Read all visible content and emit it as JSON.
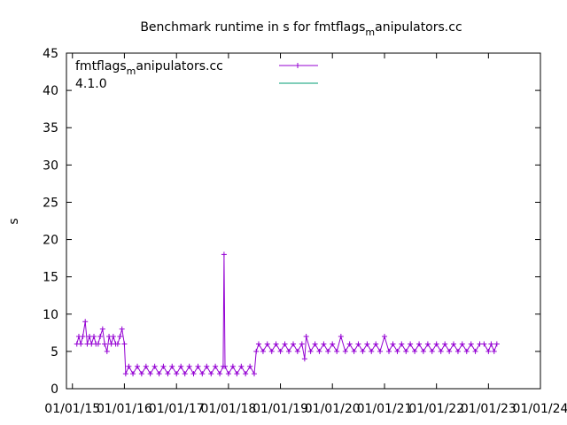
{
  "chart_data": {
    "type": "line",
    "title_main": "Benchmark runtime in s for fmtflags",
    "title_sub": "m",
    "title_tail": "anipulators.cc",
    "ylabel": "s",
    "xlabel": "",
    "ylim": [
      0,
      45
    ],
    "yticks": [
      "0",
      "5",
      "10",
      "15",
      "20",
      "25",
      "30",
      "35",
      "40",
      "45"
    ],
    "xlim": [
      "2014-11-20",
      "2024-01-01"
    ],
    "xticks": [
      {
        "date": "2015-01-01",
        "label": "01/01/15"
      },
      {
        "date": "2016-01-01",
        "label": "01/01/16"
      },
      {
        "date": "2017-01-01",
        "label": "01/01/17"
      },
      {
        "date": "2018-01-01",
        "label": "01/01/18"
      },
      {
        "date": "2019-01-01",
        "label": "01/01/19"
      },
      {
        "date": "2020-01-01",
        "label": "01/01/20"
      },
      {
        "date": "2021-01-01",
        "label": "01/01/21"
      },
      {
        "date": "2022-01-01",
        "label": "01/01/22"
      },
      {
        "date": "2023-01-01",
        "label": "01/01/23"
      },
      {
        "date": "2024-01-01",
        "label": "01/01/24"
      }
    ],
    "grid": false,
    "legend_position": "top-left",
    "series": [
      {
        "name_main": "fmtflags",
        "name_sub": "m",
        "name_tail": "anipulators.cc",
        "color": "#9400d3",
        "marker": "plus",
        "points": [
          {
            "x": "2015-02-01",
            "y": 6
          },
          {
            "x": "2015-02-15",
            "y": 7
          },
          {
            "x": "2015-03-01",
            "y": 6
          },
          {
            "x": "2015-03-15",
            "y": 7
          },
          {
            "x": "2015-04-01",
            "y": 9
          },
          {
            "x": "2015-04-15",
            "y": 6
          },
          {
            "x": "2015-05-01",
            "y": 7
          },
          {
            "x": "2015-05-15",
            "y": 6
          },
          {
            "x": "2015-06-01",
            "y": 7
          },
          {
            "x": "2015-06-15",
            "y": 6
          },
          {
            "x": "2015-07-01",
            "y": 6
          },
          {
            "x": "2015-07-15",
            "y": 7
          },
          {
            "x": "2015-08-01",
            "y": 8
          },
          {
            "x": "2015-08-15",
            "y": 6
          },
          {
            "x": "2015-09-01",
            "y": 5
          },
          {
            "x": "2015-09-15",
            "y": 7
          },
          {
            "x": "2015-10-01",
            "y": 6
          },
          {
            "x": "2015-10-15",
            "y": 7
          },
          {
            "x": "2015-11-01",
            "y": 6
          },
          {
            "x": "2015-11-15",
            "y": 6
          },
          {
            "x": "2015-12-01",
            "y": 7
          },
          {
            "x": "2015-12-15",
            "y": 8
          },
          {
            "x": "2016-01-01",
            "y": 6
          },
          {
            "x": "2016-01-10",
            "y": 2
          },
          {
            "x": "2016-02-01",
            "y": 3
          },
          {
            "x": "2016-03-01",
            "y": 2
          },
          {
            "x": "2016-04-01",
            "y": 3
          },
          {
            "x": "2016-05-01",
            "y": 2
          },
          {
            "x": "2016-06-01",
            "y": 3
          },
          {
            "x": "2016-07-01",
            "y": 2
          },
          {
            "x": "2016-08-01",
            "y": 3
          },
          {
            "x": "2016-09-01",
            "y": 2
          },
          {
            "x": "2016-10-01",
            "y": 3
          },
          {
            "x": "2016-11-01",
            "y": 2
          },
          {
            "x": "2016-12-01",
            "y": 3
          },
          {
            "x": "2017-01-01",
            "y": 2
          },
          {
            "x": "2017-02-01",
            "y": 3
          },
          {
            "x": "2017-03-01",
            "y": 2
          },
          {
            "x": "2017-04-01",
            "y": 3
          },
          {
            "x": "2017-05-01",
            "y": 2
          },
          {
            "x": "2017-06-01",
            "y": 3
          },
          {
            "x": "2017-07-01",
            "y": 2
          },
          {
            "x": "2017-08-01",
            "y": 3
          },
          {
            "x": "2017-09-01",
            "y": 2
          },
          {
            "x": "2017-10-01",
            "y": 3
          },
          {
            "x": "2017-11-01",
            "y": 2
          },
          {
            "x": "2017-11-25",
            "y": 3
          },
          {
            "x": "2017-12-01",
            "y": 18
          },
          {
            "x": "2017-12-08",
            "y": 3
          },
          {
            "x": "2018-01-01",
            "y": 2
          },
          {
            "x": "2018-02-01",
            "y": 3
          },
          {
            "x": "2018-03-01",
            "y": 2
          },
          {
            "x": "2018-04-01",
            "y": 3
          },
          {
            "x": "2018-05-01",
            "y": 2
          },
          {
            "x": "2018-06-01",
            "y": 3
          },
          {
            "x": "2018-07-01",
            "y": 2
          },
          {
            "x": "2018-07-15",
            "y": 5
          },
          {
            "x": "2018-08-01",
            "y": 6
          },
          {
            "x": "2018-09-01",
            "y": 5
          },
          {
            "x": "2018-10-01",
            "y": 6
          },
          {
            "x": "2018-11-01",
            "y": 5
          },
          {
            "x": "2018-12-01",
            "y": 6
          },
          {
            "x": "2019-01-01",
            "y": 5
          },
          {
            "x": "2019-02-01",
            "y": 6
          },
          {
            "x": "2019-03-01",
            "y": 5
          },
          {
            "x": "2019-04-01",
            "y": 6
          },
          {
            "x": "2019-05-01",
            "y": 5
          },
          {
            "x": "2019-06-01",
            "y": 6
          },
          {
            "x": "2019-06-20",
            "y": 4
          },
          {
            "x": "2019-07-01",
            "y": 7
          },
          {
            "x": "2019-08-01",
            "y": 5
          },
          {
            "x": "2019-09-01",
            "y": 6
          },
          {
            "x": "2019-10-01",
            "y": 5
          },
          {
            "x": "2019-11-01",
            "y": 6
          },
          {
            "x": "2019-12-01",
            "y": 5
          },
          {
            "x": "2020-01-01",
            "y": 6
          },
          {
            "x": "2020-02-01",
            "y": 5
          },
          {
            "x": "2020-03-01",
            "y": 7
          },
          {
            "x": "2020-04-01",
            "y": 5
          },
          {
            "x": "2020-05-01",
            "y": 6
          },
          {
            "x": "2020-06-01",
            "y": 5
          },
          {
            "x": "2020-07-01",
            "y": 6
          },
          {
            "x": "2020-08-01",
            "y": 5
          },
          {
            "x": "2020-09-01",
            "y": 6
          },
          {
            "x": "2020-10-01",
            "y": 5
          },
          {
            "x": "2020-11-01",
            "y": 6
          },
          {
            "x": "2020-12-01",
            "y": 5
          },
          {
            "x": "2021-01-01",
            "y": 7
          },
          {
            "x": "2021-02-01",
            "y": 5
          },
          {
            "x": "2021-03-01",
            "y": 6
          },
          {
            "x": "2021-04-01",
            "y": 5
          },
          {
            "x": "2021-05-01",
            "y": 6
          },
          {
            "x": "2021-06-01",
            "y": 5
          },
          {
            "x": "2021-07-01",
            "y": 6
          },
          {
            "x": "2021-08-01",
            "y": 5
          },
          {
            "x": "2021-09-01",
            "y": 6
          },
          {
            "x": "2021-10-01",
            "y": 5
          },
          {
            "x": "2021-11-01",
            "y": 6
          },
          {
            "x": "2021-12-01",
            "y": 5
          },
          {
            "x": "2022-01-01",
            "y": 6
          },
          {
            "x": "2022-02-01",
            "y": 5
          },
          {
            "x": "2022-03-01",
            "y": 6
          },
          {
            "x": "2022-04-01",
            "y": 5
          },
          {
            "x": "2022-05-01",
            "y": 6
          },
          {
            "x": "2022-06-01",
            "y": 5
          },
          {
            "x": "2022-07-01",
            "y": 6
          },
          {
            "x": "2022-08-01",
            "y": 5
          },
          {
            "x": "2022-09-01",
            "y": 6
          },
          {
            "x": "2022-10-01",
            "y": 5
          },
          {
            "x": "2022-11-01",
            "y": 6
          },
          {
            "x": "2022-12-01",
            "y": 6
          },
          {
            "x": "2023-01-01",
            "y": 5
          },
          {
            "x": "2023-01-20",
            "y": 6
          },
          {
            "x": "2023-02-10",
            "y": 5
          },
          {
            "x": "2023-03-01",
            "y": 6
          }
        ]
      },
      {
        "name": "4.1.0",
        "color": "#009e73",
        "marker": "none",
        "points": []
      }
    ]
  }
}
